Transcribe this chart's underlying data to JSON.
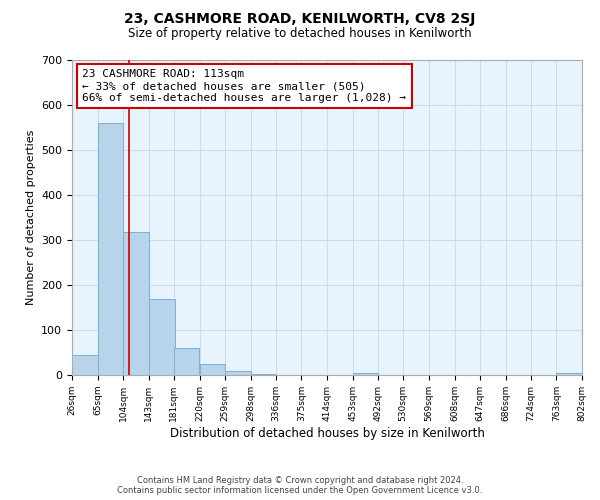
{
  "title": "23, CASHMORE ROAD, KENILWORTH, CV8 2SJ",
  "subtitle": "Size of property relative to detached houses in Kenilworth",
  "xlabel": "Distribution of detached houses by size in Kenilworth",
  "ylabel": "Number of detached properties",
  "bin_edges": [
    26,
    65,
    104,
    143,
    181,
    220,
    259,
    298,
    336,
    375,
    414,
    453,
    492,
    530,
    569,
    608,
    647,
    686,
    724,
    763,
    802
  ],
  "bar_heights": [
    45,
    560,
    318,
    168,
    60,
    25,
    10,
    3,
    0,
    0,
    0,
    5,
    0,
    0,
    0,
    0,
    0,
    0,
    0,
    5
  ],
  "bar_color": "#b8d4ea",
  "bar_edge_color": "#7bafd4",
  "property_line_x": 113,
  "property_line_color": "#cc0000",
  "annotation_line1": "23 CASHMORE ROAD: 113sqm",
  "annotation_line2": "← 33% of detached houses are smaller (505)",
  "annotation_line3": "66% of semi-detached houses are larger (1,028) →",
  "box_facecolor": "#ffffff",
  "box_edgecolor": "#cc0000",
  "ylim": [
    0,
    700
  ],
  "yticks": [
    0,
    100,
    200,
    300,
    400,
    500,
    600,
    700
  ],
  "tick_labels": [
    "26sqm",
    "65sqm",
    "104sqm",
    "143sqm",
    "181sqm",
    "220sqm",
    "259sqm",
    "298sqm",
    "336sqm",
    "375sqm",
    "414sqm",
    "453sqm",
    "492sqm",
    "530sqm",
    "569sqm",
    "608sqm",
    "647sqm",
    "686sqm",
    "724sqm",
    "763sqm",
    "802sqm"
  ],
  "footer_text": "Contains HM Land Registry data © Crown copyright and database right 2024.\nContains public sector information licensed under the Open Government Licence v3.0.",
  "grid_color": "#c8ddf0",
  "bg_color": "#e8f4fd",
  "title_fontsize": 10,
  "subtitle_fontsize": 8.5,
  "ylabel_fontsize": 8,
  "xlabel_fontsize": 8.5,
  "ytick_fontsize": 8,
  "xtick_fontsize": 6.5
}
